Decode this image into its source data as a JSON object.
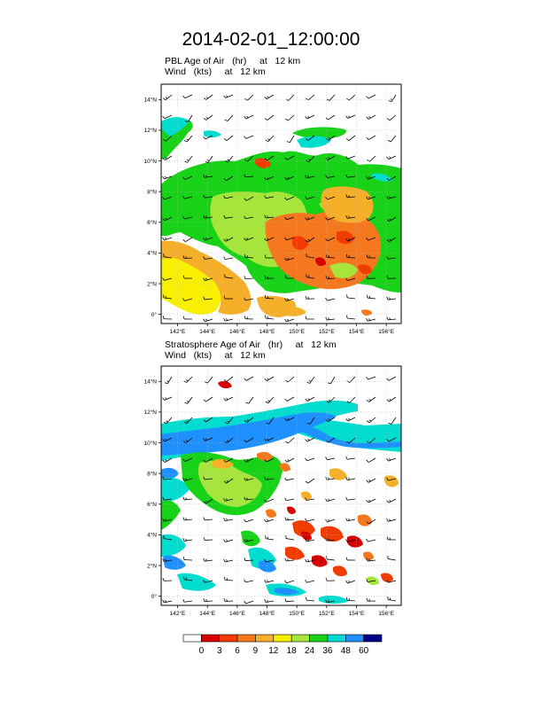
{
  "figure": {
    "title": "2014-02-01_12:00:00"
  },
  "colorbar": {
    "levels": [
      "0",
      "3",
      "6",
      "9",
      "12",
      "18",
      "24",
      "36",
      "48",
      "60"
    ],
    "colors": [
      "#ffffff",
      "#d60000",
      "#f03c00",
      "#f5781e",
      "#f5af28",
      "#f8f000",
      "#a6e63c",
      "#18d218",
      "#00dcd0",
      "#1e90ff",
      "#00008c"
    ]
  },
  "chart_data": [
    {
      "type": "heatmap",
      "title_line1": "PBL Age of Air   (hr)     at   12 km",
      "title_line2": "Wind   (kts)     at   12 km",
      "x_ticks": [
        "142°E",
        "144°E",
        "146°E",
        "148°E",
        "150°E",
        "152°E",
        "154°E",
        "156°E"
      ],
      "y_ticks": [
        "0°",
        "2°N",
        "4°N",
        "6°N",
        "8°N",
        "10°N",
        "12°N",
        "14°N"
      ],
      "xlim": [
        140.9,
        157.0
      ],
      "ylim": [
        -0.6,
        15.0
      ],
      "grid": true,
      "wind_barbs": true
    },
    {
      "type": "heatmap",
      "title_line1": "Stratosphere Age of Air   (hr)     at   12 km",
      "title_line2": "Wind   (kts)     at   12 km",
      "x_ticks": [
        "142°E",
        "144°E",
        "146°E",
        "148°E",
        "150°E",
        "152°E",
        "154°E",
        "156°E"
      ],
      "y_ticks": [
        "0°",
        "2°N",
        "4°N",
        "6°N",
        "8°N",
        "10°N",
        "12°N",
        "14°N"
      ],
      "xlim": [
        140.9,
        157.0
      ],
      "ylim": [
        -0.6,
        15.0
      ],
      "grid": true,
      "wind_barbs": true
    }
  ]
}
